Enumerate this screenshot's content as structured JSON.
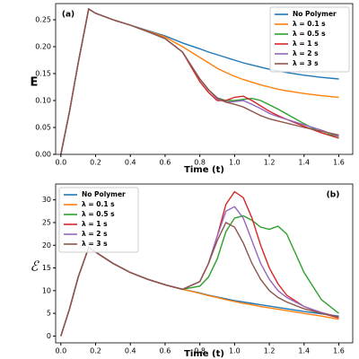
{
  "chart_data": [
    {
      "type": "line",
      "annotation": "(a)",
      "y_label": "E",
      "x_label": "Time (t)",
      "legend": "upper right",
      "x": [
        0,
        0.05,
        0.1,
        0.16,
        0.2,
        0.3,
        0.4,
        0.5,
        0.6,
        0.7,
        0.8,
        0.85,
        0.9,
        0.95,
        1.0,
        1.05,
        1.1,
        1.15,
        1.2,
        1.25,
        1.3,
        1.4,
        1.5,
        1.6
      ],
      "xlim": [
        -0.03,
        1.68
      ],
      "xticks": [
        {
          "value": 0,
          "label": "0.0"
        },
        0.2,
        0.4,
        0.6,
        0.8,
        {
          "value": 1,
          "label": "1.0"
        },
        1.2,
        1.4,
        1.6
      ],
      "ylim": [
        0,
        0.28
      ],
      "yticks": [
        {
          "value": 0,
          "label": "0.00"
        },
        {
          "value": 0.05,
          "label": "0.05"
        },
        {
          "value": 0.1,
          "label": "0.10"
        },
        {
          "value": 0.15,
          "label": "0.15"
        },
        {
          "value": 0.2,
          "label": "0.20"
        },
        {
          "value": 0.25,
          "label": "0.25"
        }
      ],
      "series": [
        {
          "name": "No Polymer",
          "color": "#1f77b4",
          "values": [
            0,
            0.08,
            0.17,
            0.27,
            0.262,
            0.25,
            0.24,
            0.23,
            0.22,
            0.207,
            0.196,
            0.19,
            0.185,
            0.18,
            0.175,
            0.17,
            0.166,
            0.162,
            0.158,
            0.155,
            0.152,
            0.147,
            0.143,
            0.14
          ]
        },
        {
          "name": "λ = 0.1 s",
          "color": "#ff7f0e",
          "values": [
            0,
            0.08,
            0.17,
            0.27,
            0.262,
            0.25,
            0.24,
            0.229,
            0.218,
            0.2,
            0.18,
            0.17,
            0.16,
            0.152,
            0.145,
            0.139,
            0.134,
            0.129,
            0.125,
            0.121,
            0.118,
            0.113,
            0.109,
            0.106
          ]
        },
        {
          "name": "λ = 0.5 s",
          "color": "#2ca02c",
          "values": [
            0,
            0.08,
            0.17,
            0.27,
            0.262,
            0.25,
            0.24,
            0.228,
            0.215,
            0.19,
            0.14,
            0.12,
            0.105,
            0.1,
            0.1,
            0.102,
            0.104,
            0.1,
            0.092,
            0.084,
            0.075,
            0.057,
            0.04,
            0.033
          ]
        },
        {
          "name": "λ = 1 s",
          "color": "#d62728",
          "values": [
            0,
            0.08,
            0.17,
            0.27,
            0.262,
            0.25,
            0.24,
            0.228,
            0.215,
            0.19,
            0.135,
            0.115,
            0.1,
            0.1,
            0.106,
            0.108,
            0.1,
            0.09,
            0.08,
            0.072,
            0.065,
            0.052,
            0.04,
            0.03
          ]
        },
        {
          "name": "λ = 2 s",
          "color": "#9467bd",
          "values": [
            0,
            0.08,
            0.17,
            0.27,
            0.262,
            0.25,
            0.24,
            0.228,
            0.215,
            0.19,
            0.14,
            0.12,
            0.103,
            0.097,
            0.098,
            0.1,
            0.093,
            0.085,
            0.076,
            0.07,
            0.065,
            0.055,
            0.045,
            0.033
          ]
        },
        {
          "name": "λ = 3 s",
          "color": "#8c564b",
          "values": [
            0,
            0.08,
            0.17,
            0.27,
            0.262,
            0.25,
            0.24,
            0.228,
            0.215,
            0.19,
            0.14,
            0.12,
            0.105,
            0.097,
            0.093,
            0.088,
            0.08,
            0.072,
            0.066,
            0.062,
            0.058,
            0.05,
            0.043,
            0.036
          ]
        }
      ]
    },
    {
      "type": "line",
      "annotation": "(b)",
      "y_label": "ℰ",
      "x_label": "Time (t)",
      "legend": "upper left",
      "x": [
        0,
        0.05,
        0.1,
        0.16,
        0.2,
        0.3,
        0.4,
        0.5,
        0.6,
        0.7,
        0.8,
        0.85,
        0.9,
        0.95,
        1.0,
        1.05,
        1.1,
        1.15,
        1.2,
        1.25,
        1.3,
        1.4,
        1.5,
        1.6
      ],
      "xlim": [
        -0.03,
        1.68
      ],
      "xticks": [
        {
          "value": 0,
          "label": "0.0"
        },
        0.2,
        0.4,
        0.6,
        0.8,
        {
          "value": 1,
          "label": "1.0"
        },
        1.2,
        1.4,
        1.6
      ],
      "ylim": [
        -1.5,
        33.5
      ],
      "yticks": [
        0,
        5,
        10,
        15,
        20,
        25,
        30
      ],
      "series": [
        {
          "name": "No Polymer",
          "color": "#1f77b4",
          "values": [
            0,
            6,
            13,
            19.5,
            18.5,
            16,
            14,
            12.5,
            11.3,
            10.3,
            9.5,
            9,
            8.6,
            8.2,
            7.8,
            7.5,
            7.2,
            6.9,
            6.6,
            6.3,
            6,
            5.4,
            4.9,
            4.4
          ]
        },
        {
          "name": "λ = 0.1 s",
          "color": "#ff7f0e",
          "values": [
            0,
            6,
            13,
            19.5,
            18.5,
            16,
            14,
            12.5,
            11.3,
            10.3,
            9.4,
            8.9,
            8.5,
            8,
            7.6,
            7.2,
            6.9,
            6.5,
            6.2,
            5.9,
            5.6,
            5,
            4.4,
            3.7
          ]
        },
        {
          "name": "λ = 0.5 s",
          "color": "#2ca02c",
          "values": [
            0,
            6,
            13,
            19.5,
            18.5,
            16,
            14,
            12.5,
            11.3,
            10.3,
            11,
            13,
            17,
            23,
            26,
            26.5,
            25.5,
            24,
            23.5,
            24.2,
            22.5,
            14,
            8,
            5
          ]
        },
        {
          "name": "λ = 1 s",
          "color": "#d62728",
          "values": [
            0,
            6,
            13,
            19.5,
            18.5,
            16,
            14,
            12.5,
            11.3,
            10.3,
            12,
            16,
            22,
            29,
            31.8,
            30.5,
            26,
            20,
            15,
            11.5,
            9,
            6.5,
            5,
            4
          ]
        },
        {
          "name": "λ = 2 s",
          "color": "#9467bd",
          "values": [
            0,
            6,
            13,
            19.5,
            18.5,
            16,
            14,
            12.5,
            11.3,
            10.3,
            12,
            16,
            22,
            27.5,
            28.5,
            26,
            21,
            16,
            12.5,
            10,
            8.5,
            6.5,
            5.2,
            4.2
          ]
        },
        {
          "name": "λ = 3 s",
          "color": "#8c564b",
          "values": [
            0,
            6,
            13,
            19.5,
            18.5,
            16,
            14,
            12.5,
            11.3,
            10.3,
            12,
            16,
            21,
            25,
            24,
            20.5,
            16,
            12.5,
            10,
            8.5,
            7.5,
            6,
            5,
            4.2
          ]
        }
      ]
    }
  ]
}
